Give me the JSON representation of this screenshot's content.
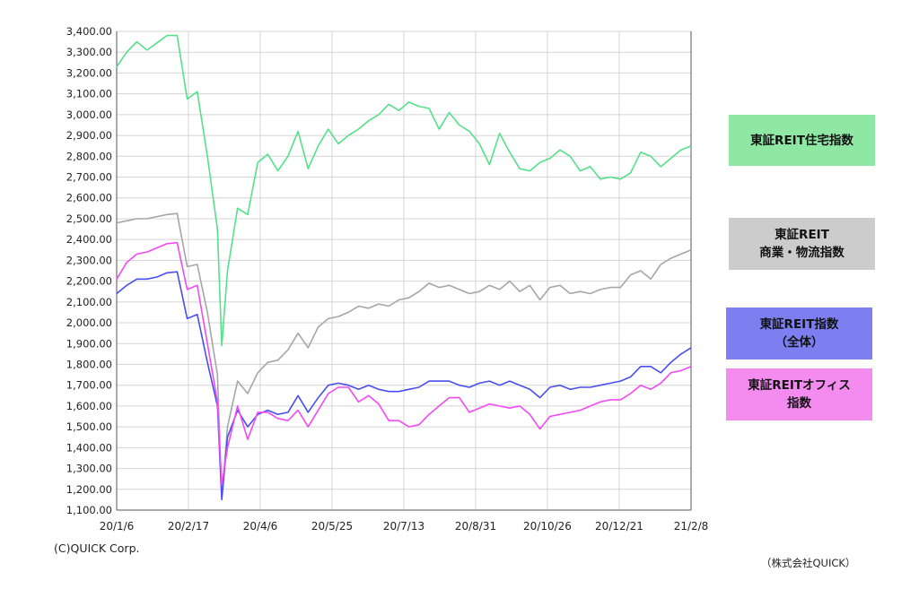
{
  "chart_data": {
    "type": "line",
    "ylim": [
      1100,
      3400
    ],
    "y_ticks": [
      "3,400.00",
      "3,300.00",
      "3,200.00",
      "3,100.00",
      "3,000.00",
      "2,900.00",
      "2,800.00",
      "2,700.00",
      "2,600.00",
      "2,500.00",
      "2,400.00",
      "2,300.00",
      "2,200.00",
      "2,100.00",
      "2,000.00",
      "1,900.00",
      "1,800.00",
      "1,700.00",
      "1,600.00",
      "1,500.00",
      "1,400.00",
      "1,300.00",
      "1,200.00",
      "1,100.00"
    ],
    "x_ticks": [
      "20/1/6",
      "20/2/17",
      "20/4/6",
      "20/5/25",
      "20/7/13",
      "20/8/31",
      "20/10/26",
      "20/12/21",
      "21/2/8"
    ],
    "x_start": "2020-01-06",
    "x_end": "2021-02-08",
    "grid": true,
    "series": [
      {
        "name": "東証REIT住宅指数",
        "color": "#55e08a",
        "points": [
          [
            "2020-01-06",
            3230
          ],
          [
            "2020-01-13",
            3300
          ],
          [
            "2020-01-20",
            3350
          ],
          [
            "2020-01-27",
            3310
          ],
          [
            "2020-02-03",
            3345
          ],
          [
            "2020-02-10",
            3380
          ],
          [
            "2020-02-17",
            3380
          ],
          [
            "2020-02-24",
            3075
          ],
          [
            "2020-03-02",
            3110
          ],
          [
            "2020-03-09",
            2800
          ],
          [
            "2020-03-16",
            2450
          ],
          [
            "2020-03-19",
            1890
          ],
          [
            "2020-03-23",
            2250
          ],
          [
            "2020-03-30",
            2550
          ],
          [
            "2020-04-06",
            2520
          ],
          [
            "2020-04-13",
            2770
          ],
          [
            "2020-04-20",
            2810
          ],
          [
            "2020-04-27",
            2730
          ],
          [
            "2020-05-04",
            2800
          ],
          [
            "2020-05-11",
            2920
          ],
          [
            "2020-05-18",
            2740
          ],
          [
            "2020-05-25",
            2850
          ],
          [
            "2020-06-01",
            2930
          ],
          [
            "2020-06-08",
            2860
          ],
          [
            "2020-06-15",
            2900
          ],
          [
            "2020-06-22",
            2930
          ],
          [
            "2020-06-29",
            2970
          ],
          [
            "2020-07-06",
            3000
          ],
          [
            "2020-07-13",
            3050
          ],
          [
            "2020-07-20",
            3020
          ],
          [
            "2020-07-27",
            3060
          ],
          [
            "2020-08-03",
            3040
          ],
          [
            "2020-08-10",
            3030
          ],
          [
            "2020-08-17",
            2930
          ],
          [
            "2020-08-24",
            3010
          ],
          [
            "2020-08-31",
            2950
          ],
          [
            "2020-09-07",
            2920
          ],
          [
            "2020-09-14",
            2860
          ],
          [
            "2020-09-21",
            2760
          ],
          [
            "2020-09-28",
            2910
          ],
          [
            "2020-10-05",
            2820
          ],
          [
            "2020-10-12",
            2740
          ],
          [
            "2020-10-19",
            2730
          ],
          [
            "2020-10-26",
            2770
          ],
          [
            "2020-11-02",
            2790
          ],
          [
            "2020-11-09",
            2830
          ],
          [
            "2020-11-16",
            2800
          ],
          [
            "2020-11-23",
            2730
          ],
          [
            "2020-11-30",
            2750
          ],
          [
            "2020-12-07",
            2690
          ],
          [
            "2020-12-14",
            2700
          ],
          [
            "2020-12-21",
            2690
          ],
          [
            "2020-12-28",
            2720
          ],
          [
            "2021-01-04",
            2820
          ],
          [
            "2021-01-11",
            2800
          ],
          [
            "2021-01-18",
            2750
          ],
          [
            "2021-01-25",
            2790
          ],
          [
            "2021-02-01",
            2830
          ],
          [
            "2021-02-08",
            2850
          ]
        ]
      },
      {
        "name": "東証REIT 商業・物流指数",
        "color": "#a6a6a6",
        "points": [
          [
            "2020-01-06",
            2480
          ],
          [
            "2020-01-13",
            2490
          ],
          [
            "2020-01-20",
            2500
          ],
          [
            "2020-01-27",
            2500
          ],
          [
            "2020-02-03",
            2510
          ],
          [
            "2020-02-10",
            2520
          ],
          [
            "2020-02-17",
            2525
          ],
          [
            "2020-02-24",
            2270
          ],
          [
            "2020-03-02",
            2280
          ],
          [
            "2020-03-09",
            2050
          ],
          [
            "2020-03-16",
            1750
          ],
          [
            "2020-03-19",
            1160
          ],
          [
            "2020-03-23",
            1500
          ],
          [
            "2020-03-30",
            1720
          ],
          [
            "2020-04-06",
            1660
          ],
          [
            "2020-04-13",
            1760
          ],
          [
            "2020-04-20",
            1810
          ],
          [
            "2020-04-27",
            1820
          ],
          [
            "2020-05-04",
            1870
          ],
          [
            "2020-05-11",
            1950
          ],
          [
            "2020-05-18",
            1880
          ],
          [
            "2020-05-25",
            1980
          ],
          [
            "2020-06-01",
            2020
          ],
          [
            "2020-06-08",
            2030
          ],
          [
            "2020-06-15",
            2050
          ],
          [
            "2020-06-22",
            2080
          ],
          [
            "2020-06-29",
            2070
          ],
          [
            "2020-07-06",
            2090
          ],
          [
            "2020-07-13",
            2080
          ],
          [
            "2020-07-20",
            2110
          ],
          [
            "2020-07-27",
            2120
          ],
          [
            "2020-08-03",
            2150
          ],
          [
            "2020-08-10",
            2190
          ],
          [
            "2020-08-17",
            2170
          ],
          [
            "2020-08-24",
            2180
          ],
          [
            "2020-08-31",
            2160
          ],
          [
            "2020-09-07",
            2140
          ],
          [
            "2020-09-14",
            2150
          ],
          [
            "2020-09-21",
            2180
          ],
          [
            "2020-09-28",
            2160
          ],
          [
            "2020-10-05",
            2200
          ],
          [
            "2020-10-12",
            2150
          ],
          [
            "2020-10-19",
            2180
          ],
          [
            "2020-10-26",
            2110
          ],
          [
            "2020-11-02",
            2170
          ],
          [
            "2020-11-09",
            2180
          ],
          [
            "2020-11-16",
            2140
          ],
          [
            "2020-11-23",
            2150
          ],
          [
            "2020-11-30",
            2140
          ],
          [
            "2020-12-07",
            2160
          ],
          [
            "2020-12-14",
            2170
          ],
          [
            "2020-12-21",
            2170
          ],
          [
            "2020-12-28",
            2230
          ],
          [
            "2021-01-04",
            2250
          ],
          [
            "2021-01-11",
            2210
          ],
          [
            "2021-01-18",
            2280
          ],
          [
            "2021-01-25",
            2310
          ],
          [
            "2021-02-01",
            2330
          ],
          [
            "2021-02-08",
            2350
          ]
        ]
      },
      {
        "name": "東証REIT指数（全体）",
        "color": "#4a4ef0",
        "points": [
          [
            "2020-01-06",
            2140
          ],
          [
            "2020-01-13",
            2180
          ],
          [
            "2020-01-20",
            2210
          ],
          [
            "2020-01-27",
            2210
          ],
          [
            "2020-02-03",
            2220
          ],
          [
            "2020-02-10",
            2240
          ],
          [
            "2020-02-17",
            2245
          ],
          [
            "2020-02-24",
            2020
          ],
          [
            "2020-03-02",
            2040
          ],
          [
            "2020-03-09",
            1810
          ],
          [
            "2020-03-16",
            1600
          ],
          [
            "2020-03-19",
            1150
          ],
          [
            "2020-03-23",
            1450
          ],
          [
            "2020-03-30",
            1580
          ],
          [
            "2020-04-06",
            1500
          ],
          [
            "2020-04-13",
            1560
          ],
          [
            "2020-04-20",
            1580
          ],
          [
            "2020-04-27",
            1560
          ],
          [
            "2020-05-04",
            1570
          ],
          [
            "2020-05-11",
            1650
          ],
          [
            "2020-05-18",
            1570
          ],
          [
            "2020-05-25",
            1640
          ],
          [
            "2020-06-01",
            1700
          ],
          [
            "2020-06-08",
            1710
          ],
          [
            "2020-06-15",
            1700
          ],
          [
            "2020-06-22",
            1680
          ],
          [
            "2020-06-29",
            1700
          ],
          [
            "2020-07-06",
            1680
          ],
          [
            "2020-07-13",
            1670
          ],
          [
            "2020-07-20",
            1670
          ],
          [
            "2020-07-27",
            1680
          ],
          [
            "2020-08-03",
            1690
          ],
          [
            "2020-08-10",
            1720
          ],
          [
            "2020-08-17",
            1720
          ],
          [
            "2020-08-24",
            1720
          ],
          [
            "2020-08-31",
            1700
          ],
          [
            "2020-09-07",
            1690
          ],
          [
            "2020-09-14",
            1710
          ],
          [
            "2020-09-21",
            1720
          ],
          [
            "2020-09-28",
            1700
          ],
          [
            "2020-10-05",
            1720
          ],
          [
            "2020-10-12",
            1700
          ],
          [
            "2020-10-19",
            1680
          ],
          [
            "2020-10-26",
            1640
          ],
          [
            "2020-11-02",
            1690
          ],
          [
            "2020-11-09",
            1700
          ],
          [
            "2020-11-16",
            1680
          ],
          [
            "2020-11-23",
            1690
          ],
          [
            "2020-11-30",
            1690
          ],
          [
            "2020-12-07",
            1700
          ],
          [
            "2020-12-14",
            1710
          ],
          [
            "2020-12-21",
            1720
          ],
          [
            "2020-12-28",
            1740
          ],
          [
            "2021-01-04",
            1790
          ],
          [
            "2021-01-11",
            1790
          ],
          [
            "2021-01-18",
            1760
          ],
          [
            "2021-01-25",
            1810
          ],
          [
            "2021-02-01",
            1850
          ],
          [
            "2021-02-08",
            1880
          ]
        ]
      },
      {
        "name": "東証REITオフィス指数",
        "color": "#f24af2",
        "points": [
          [
            "2020-01-06",
            2210
          ],
          [
            "2020-01-13",
            2290
          ],
          [
            "2020-01-20",
            2330
          ],
          [
            "2020-01-27",
            2340
          ],
          [
            "2020-02-03",
            2360
          ],
          [
            "2020-02-10",
            2380
          ],
          [
            "2020-02-17",
            2385
          ],
          [
            "2020-02-24",
            2160
          ],
          [
            "2020-03-02",
            2180
          ],
          [
            "2020-03-09",
            1900
          ],
          [
            "2020-03-16",
            1620
          ],
          [
            "2020-03-19",
            1220
          ],
          [
            "2020-03-23",
            1400
          ],
          [
            "2020-03-30",
            1600
          ],
          [
            "2020-04-06",
            1440
          ],
          [
            "2020-04-13",
            1570
          ],
          [
            "2020-04-20",
            1570
          ],
          [
            "2020-04-27",
            1540
          ],
          [
            "2020-05-04",
            1530
          ],
          [
            "2020-05-11",
            1580
          ],
          [
            "2020-05-18",
            1500
          ],
          [
            "2020-05-25",
            1580
          ],
          [
            "2020-06-01",
            1660
          ],
          [
            "2020-06-08",
            1690
          ],
          [
            "2020-06-15",
            1690
          ],
          [
            "2020-06-22",
            1620
          ],
          [
            "2020-06-29",
            1650
          ],
          [
            "2020-07-06",
            1610
          ],
          [
            "2020-07-13",
            1530
          ],
          [
            "2020-07-20",
            1530
          ],
          [
            "2020-07-27",
            1500
          ],
          [
            "2020-08-03",
            1510
          ],
          [
            "2020-08-10",
            1560
          ],
          [
            "2020-08-17",
            1600
          ],
          [
            "2020-08-24",
            1640
          ],
          [
            "2020-08-31",
            1640
          ],
          [
            "2020-09-07",
            1570
          ],
          [
            "2020-09-14",
            1590
          ],
          [
            "2020-09-21",
            1610
          ],
          [
            "2020-09-28",
            1600
          ],
          [
            "2020-10-05",
            1590
          ],
          [
            "2020-10-12",
            1600
          ],
          [
            "2020-10-19",
            1560
          ],
          [
            "2020-10-26",
            1490
          ],
          [
            "2020-11-02",
            1550
          ],
          [
            "2020-11-09",
            1560
          ],
          [
            "2020-11-16",
            1570
          ],
          [
            "2020-11-23",
            1580
          ],
          [
            "2020-11-30",
            1600
          ],
          [
            "2020-12-07",
            1620
          ],
          [
            "2020-12-14",
            1630
          ],
          [
            "2020-12-21",
            1630
          ],
          [
            "2020-12-28",
            1660
          ],
          [
            "2021-01-04",
            1700
          ],
          [
            "2021-01-11",
            1680
          ],
          [
            "2021-01-18",
            1710
          ],
          [
            "2021-01-25",
            1760
          ],
          [
            "2021-02-01",
            1770
          ],
          [
            "2021-02-08",
            1790
          ]
        ]
      }
    ]
  },
  "legend": {
    "housing": {
      "line1": "東証REIT住宅指数",
      "line2": "",
      "bg": "#8ee8a4"
    },
    "retail": {
      "line1": "東証REIT",
      "line2": "商業・物流指数",
      "bg": "#cccccc"
    },
    "all": {
      "line1": "東証REIT指数",
      "line2": "（全体）",
      "bg": "#7d7ff0"
    },
    "office": {
      "line1": "東証REITオフィス",
      "line2": "指数",
      "bg": "#f48cf0"
    }
  },
  "copyright": "(C)QUICK Corp.",
  "source": "（株式会社QUICK）"
}
